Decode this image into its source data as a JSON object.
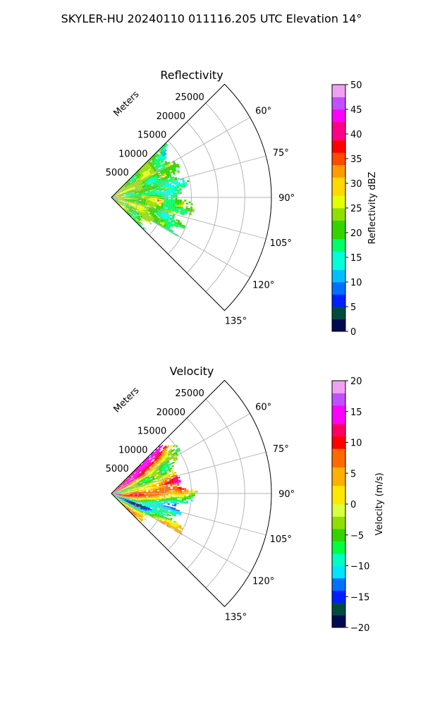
{
  "figure": {
    "suptitle": "SKYLER-HU  20240110  011116.205 UTC Elevation 14°"
  },
  "chart_data": [
    {
      "type": "heatmap",
      "projection": "polar-sector",
      "title": "Reflectivity",
      "range_label": "Meters",
      "range_ticks": [
        5000,
        10000,
        15000,
        20000,
        25000
      ],
      "range_tick_labels": [
        "5000",
        "10000",
        "15000",
        "20000",
        "25000"
      ],
      "rmax": 30000,
      "azimuth_range": [
        45,
        135
      ],
      "azimuth_ticks": [
        60,
        75,
        90,
        105,
        120,
        135
      ],
      "azimuth_tick_labels": [
        "60°",
        "75°",
        "90°",
        "105°",
        "120°",
        "135°"
      ],
      "grid": true,
      "data_extent_m": 16000,
      "colorbar": {
        "label": "Reflectivity dBZ",
        "min": 0,
        "max": 50,
        "ticks": [
          0,
          5,
          10,
          15,
          20,
          25,
          30,
          35,
          40,
          45,
          50
        ],
        "tick_labels": [
          "0",
          "5",
          "10",
          "15",
          "20",
          "25",
          "30",
          "35",
          "40",
          "45",
          "50"
        ],
        "stops": [
          [
            0,
            "#000a50"
          ],
          [
            3,
            "#004c3c"
          ],
          [
            5,
            "#0020ff"
          ],
          [
            7,
            "#0070ff"
          ],
          [
            10,
            "#00bfff"
          ],
          [
            13,
            "#00ffd8"
          ],
          [
            16,
            "#00ff66"
          ],
          [
            19,
            "#33d400"
          ],
          [
            22,
            "#8fe000"
          ],
          [
            25,
            "#e6ff00"
          ],
          [
            28,
            "#ffd800"
          ],
          [
            31,
            "#ff9a00"
          ],
          [
            34,
            "#ff4a00"
          ],
          [
            36,
            "#ff0000"
          ],
          [
            39,
            "#ff0088"
          ],
          [
            42,
            "#ff00ff"
          ],
          [
            45,
            "#c050ff"
          ],
          [
            48,
            "#f0a0f0"
          ],
          [
            50,
            "#fff0ff"
          ]
        ]
      }
    },
    {
      "type": "heatmap",
      "projection": "polar-sector",
      "title": "Velocity",
      "range_label": "Meters",
      "range_ticks": [
        5000,
        10000,
        15000,
        20000,
        25000
      ],
      "range_tick_labels": [
        "5000",
        "10000",
        "15000",
        "20000",
        "25000"
      ],
      "rmax": 30000,
      "azimuth_range": [
        45,
        135
      ],
      "azimuth_ticks": [
        60,
        75,
        90,
        105,
        120,
        135
      ],
      "azimuth_tick_labels": [
        "60°",
        "75°",
        "90°",
        "105°",
        "120°",
        "135°"
      ],
      "grid": true,
      "data_extent_m": 16000,
      "colorbar": {
        "label": "Velocity (m/s)",
        "min": -20,
        "max": 20,
        "ticks": [
          -20,
          -15,
          -10,
          -5,
          0,
          5,
          10,
          15,
          20
        ],
        "tick_labels": [
          "−20",
          "−15",
          "−10",
          "−5",
          "0",
          "5",
          "10",
          "15",
          "20"
        ],
        "stops": [
          [
            -20,
            "#000a50"
          ],
          [
            -18,
            "#004c3c"
          ],
          [
            -16,
            "#0020ff"
          ],
          [
            -14,
            "#0070ff"
          ],
          [
            -12,
            "#00e6ff"
          ],
          [
            -10,
            "#00ffc0"
          ],
          [
            -8,
            "#00ff40"
          ],
          [
            -6,
            "#33d400"
          ],
          [
            -4,
            "#8fe000"
          ],
          [
            -2,
            "#d8ff40"
          ],
          [
            0,
            "#ffe800"
          ],
          [
            3,
            "#ffb000"
          ],
          [
            6,
            "#ff6a00"
          ],
          [
            9,
            "#ff0000"
          ],
          [
            11,
            "#ff0060"
          ],
          [
            13,
            "#ff00ff"
          ],
          [
            16,
            "#c050ff"
          ],
          [
            18,
            "#f0a0f0"
          ],
          [
            20,
            "#fff0ff"
          ]
        ]
      }
    }
  ]
}
